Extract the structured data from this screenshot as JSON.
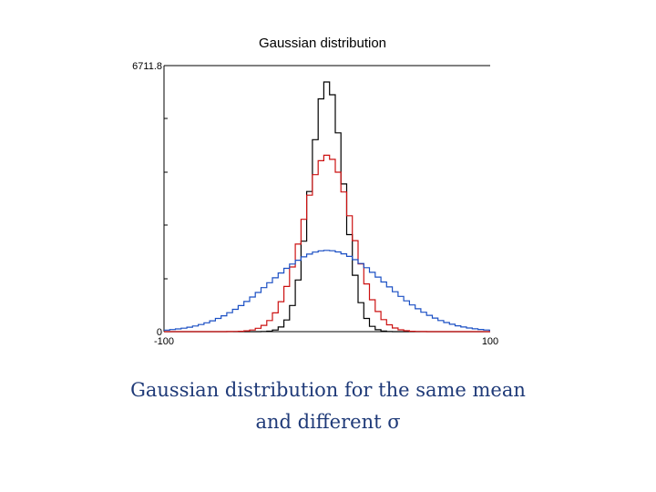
{
  "chart_data": {
    "type": "histogram-step",
    "title": "Gaussian  distribution",
    "xlim": [
      -100,
      100
    ],
    "ylim": [
      0,
      6711.8
    ],
    "x_tick_labels": [
      "-100",
      "100"
    ],
    "y_tick_labels": [
      "0",
      "6711.8"
    ],
    "grid": false,
    "series": [
      {
        "color": "#000000",
        "mean": 0,
        "sigma": 10,
        "peak": 6300
      },
      {
        "color": "#cc1111",
        "mean": 0,
        "sigma": 15,
        "peak": 4450
      },
      {
        "color": "#1a4fc4",
        "mean": 0,
        "sigma": 35,
        "peak": 2050
      }
    ]
  },
  "caption": {
    "line1": "Gaussian distribution for the same mean",
    "line2": "and different σ"
  }
}
